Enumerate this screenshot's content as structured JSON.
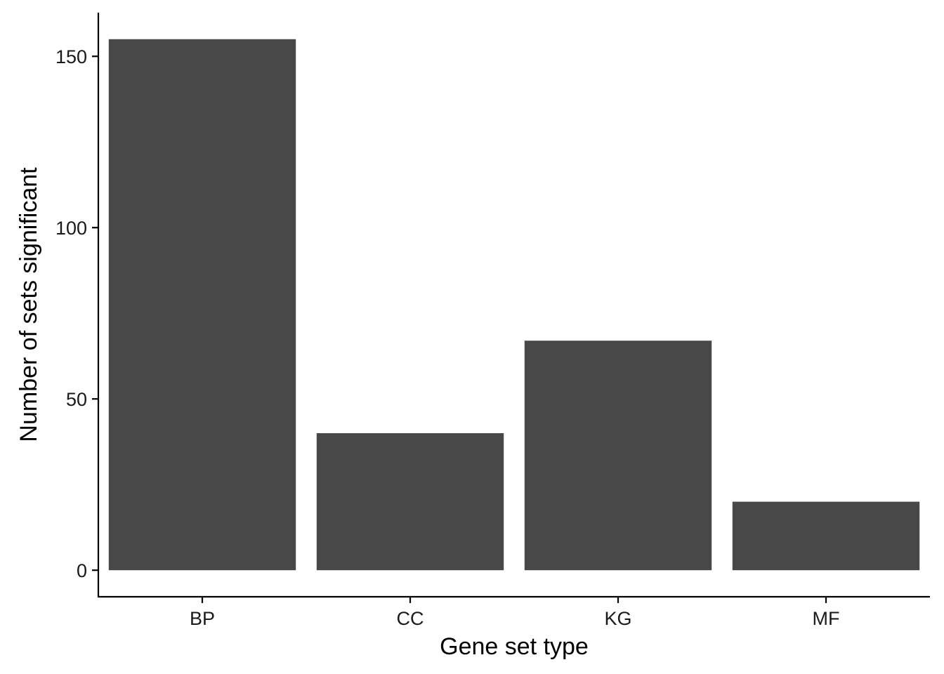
{
  "chart_data": {
    "type": "bar",
    "categories": [
      "BP",
      "CC",
      "KG",
      "MF"
    ],
    "values": [
      155,
      40,
      67,
      20
    ],
    "xlabel": "Gene set type",
    "ylabel": "Number of sets significant",
    "ylim": [
      -7.75,
      162.75
    ],
    "yticks": [
      0,
      50,
      100,
      150
    ],
    "grid": false,
    "legend": "none",
    "bar_color": "#484848"
  }
}
